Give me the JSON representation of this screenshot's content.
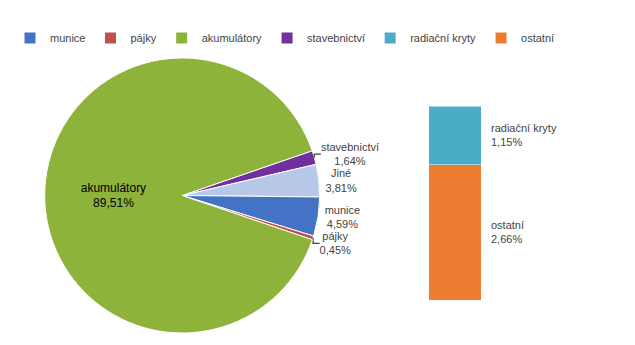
{
  "chart_data": [
    {
      "type": "pie",
      "categories": [
        "stavebnictví",
        "Jiné",
        "munice",
        "pájky",
        "akumulátory"
      ],
      "values": [
        1.64,
        3.81,
        4.59,
        0.45,
        89.51
      ],
      "value_labels": [
        "1,64%",
        "3,81%",
        "4,59%",
        "0,45%",
        "89,51%"
      ],
      "colors": [
        "#7030a0",
        "#b8c8e8",
        "#4472c4",
        "#c0504d",
        "#8db33a"
      ],
      "data_labels": true
    },
    {
      "type": "bar",
      "stacked": true,
      "categories": [
        null
      ],
      "series": [
        {
          "name": "ostatní",
          "color": "#ed7d31",
          "values": [
            2.66
          ],
          "value_labels": [
            "2,66%"
          ]
        },
        {
          "name": "radiační kryty",
          "color": "#4bacc6",
          "values": [
            1.15
          ],
          "value_labels": [
            "1,15%"
          ]
        }
      ],
      "ylim": [
        0,
        4.0005
      ],
      "data_labels": true,
      "tick_labels": false
    },
    {
      "type": "legend",
      "legend": "top",
      "series": [
        {
          "name": "munice",
          "color": "#4472c4"
        },
        {
          "name": "pájky",
          "color": "#c0504d"
        },
        {
          "name": "akumulátory",
          "color": "#8db33a"
        },
        {
          "name": "stavebnictví",
          "color": "#7030a0"
        },
        {
          "name": "radiační kryty",
          "color": "#4bacc6"
        },
        {
          "name": "ostatní",
          "color": "#ed7d31"
        }
      ]
    }
  ]
}
